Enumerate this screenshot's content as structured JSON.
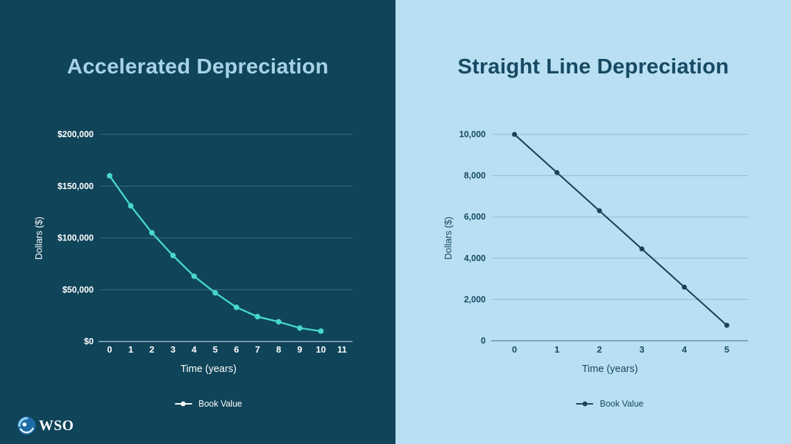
{
  "branding": {
    "logo_text": "WSO"
  },
  "chart_data": [
    {
      "type": "line",
      "title": "Accelerated Depreciation",
      "xlabel": "Time (years)",
      "ylabel": "Dollars ($)",
      "legend": "Book Value",
      "x": [
        0,
        1,
        2,
        3,
        4,
        5,
        6,
        7,
        8,
        9,
        10
      ],
      "series": [
        {
          "name": "Book Value",
          "values": [
            160000,
            131000,
            105000,
            83000,
            63000,
            47000,
            33000,
            24000,
            19000,
            13000,
            10000
          ]
        }
      ],
      "x_ticks": [
        "0",
        "1",
        "2",
        "3",
        "4",
        "5",
        "6",
        "7",
        "8",
        "9",
        "10",
        "11"
      ],
      "y_ticks": [
        {
          "label": "$0",
          "value": 0
        },
        {
          "label": "$50,000",
          "value": 50000
        },
        {
          "label": "$100,000",
          "value": 100000
        },
        {
          "label": "$150,000",
          "value": 150000
        },
        {
          "label": "$200,000",
          "value": 200000
        }
      ],
      "xlim": [
        0,
        11
      ],
      "ylim": [
        0,
        200000
      ],
      "grid": true,
      "legend_position": "bottom",
      "colors": {
        "background": "#0f4459",
        "title": "#a7d2e6",
        "line": "#47d7ca",
        "marker": "#47d7ca",
        "text": "#ffffff",
        "grid": "rgba(255,255,255,0.22)",
        "axis": "#9fb6c2",
        "legend_marker": "#ffffff"
      }
    },
    {
      "type": "line",
      "title": "Straight Line Depreciation",
      "xlabel": "Time (years)",
      "ylabel": "Dollars ($)",
      "legend": "Book Value",
      "x": [
        0,
        1,
        2,
        3,
        4,
        5
      ],
      "series": [
        {
          "name": "Book Value",
          "values": [
            10000,
            8150,
            6300,
            4450,
            2600,
            750
          ]
        }
      ],
      "x_ticks": [
        "0",
        "1",
        "2",
        "3",
        "4",
        "5"
      ],
      "y_ticks": [
        {
          "label": "0",
          "value": 0
        },
        {
          "label": "2,000",
          "value": 2000
        },
        {
          "label": "4,000",
          "value": 4000
        },
        {
          "label": "6,000",
          "value": 6000
        },
        {
          "label": "8,000",
          "value": 8000
        },
        {
          "label": "10,000",
          "value": 10000
        }
      ],
      "xlim": [
        0,
        5
      ],
      "ylim": [
        0,
        10000
      ],
      "grid": true,
      "legend_position": "bottom",
      "colors": {
        "background": "#b8dff2",
        "title": "#174a63",
        "line": "#1c4257",
        "marker": "#1c4257",
        "text": "#174a63",
        "grid": "rgba(23,74,99,0.25)",
        "axis": "rgba(23,74,99,0.55)",
        "legend_marker": "#1c4257"
      }
    }
  ]
}
